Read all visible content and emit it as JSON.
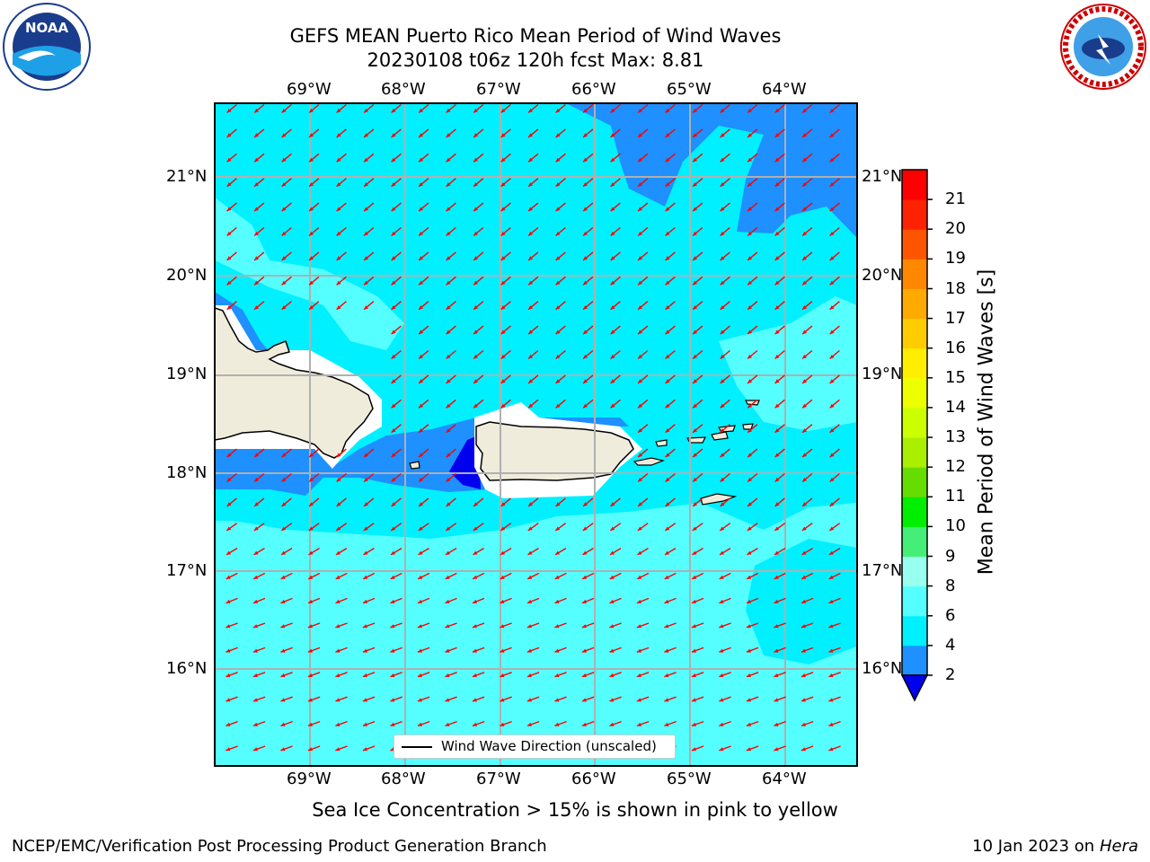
{
  "title": {
    "line1": "GEFS MEAN Puerto Rico Mean Period of Wind Waves",
    "line2": "20230108 t06z 120h fcst   Max: 8.81"
  },
  "logos": {
    "left": "noaa-logo",
    "left_text": "NOAA",
    "right": "nws-logo",
    "right_text": "NATIONAL WEATHER SERVICE"
  },
  "map": {
    "longitude_labels": [
      "69°W",
      "68°W",
      "67°W",
      "66°W",
      "65°W",
      "64°W"
    ],
    "latitude_labels": [
      "21°N",
      "20°N",
      "19°N",
      "18°N",
      "17°N",
      "16°N"
    ],
    "arrow_color": "#ff0000",
    "land_color": "#efecdc",
    "gridline_color": "#b0b0b0"
  },
  "legend": {
    "label": "Wind Wave Direction (unscaled)"
  },
  "colorbar": {
    "label": "Mean Period of Wind Waves [s]",
    "tick_labels": [
      "2",
      "4",
      "6",
      "8",
      "9",
      "10",
      "11",
      "12",
      "13",
      "14",
      "15",
      "16",
      "17",
      "18",
      "19",
      "20",
      "21"
    ],
    "levels": [
      2,
      4,
      6,
      8,
      9,
      10,
      11,
      12,
      13,
      14,
      15,
      16,
      17,
      18,
      19,
      20,
      21
    ],
    "colors": [
      "#0000ee",
      "#1e90ff",
      "#00f0ff",
      "#55ffff",
      "#99ffee",
      "#44ee77",
      "#00ee00",
      "#66dd00",
      "#aaee00",
      "#ccff00",
      "#eeff00",
      "#ffee00",
      "#ffcc00",
      "#ffaa00",
      "#ff8800",
      "#ff5500",
      "#ff2200",
      "#ff0000"
    ]
  },
  "caption": "Sea Ice Concentration > 15% is shown in pink to yellow",
  "footer": {
    "left": "NCEP/EMC/Verification Post Processing Product Generation Branch",
    "right_prefix": "10 Jan 2023 on ",
    "right_italic": "Hera"
  }
}
